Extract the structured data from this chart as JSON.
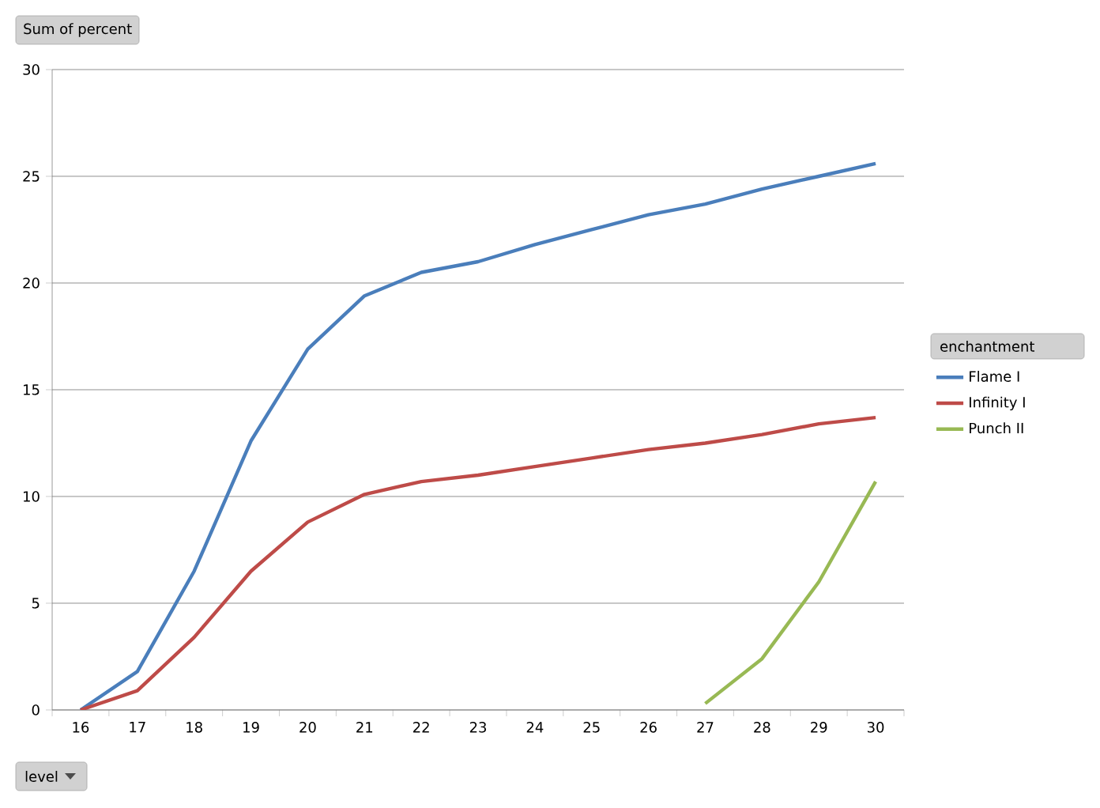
{
  "chart_data": {
    "type": "line",
    "ylabel": "Sum of percent",
    "legend_title": "enchantment",
    "annotations": [
      "level"
    ],
    "categories": [
      "16",
      "17",
      "18",
      "19",
      "20",
      "21",
      "22",
      "23",
      "24",
      "25",
      "26",
      "27",
      "28",
      "29",
      "30"
    ],
    "series": [
      {
        "name": "Flame I",
        "color": "#4a7ebb",
        "values": [
          0,
          1.8,
          6.5,
          12.6,
          16.9,
          19.4,
          20.5,
          21.0,
          21.8,
          22.5,
          23.2,
          23.7,
          24.4,
          25.0,
          25.6
        ]
      },
      {
        "name": "Infinity I",
        "color": "#be4b48",
        "values": [
          0,
          0.9,
          3.4,
          6.5,
          8.8,
          10.1,
          10.7,
          11.0,
          11.4,
          11.8,
          12.2,
          12.5,
          12.9,
          13.4,
          13.7
        ]
      },
      {
        "name": "Punch II",
        "color": "#98b954",
        "values": [
          null,
          null,
          null,
          null,
          null,
          null,
          null,
          null,
          null,
          null,
          null,
          0.3,
          2.4,
          6.0,
          10.7
        ]
      }
    ],
    "ylim": [
      0,
      30
    ],
    "yticks": [
      0,
      5,
      10,
      15,
      20,
      25,
      30
    ],
    "grid": "y",
    "legend": "right",
    "marker": "none",
    "line_style": "solid"
  }
}
